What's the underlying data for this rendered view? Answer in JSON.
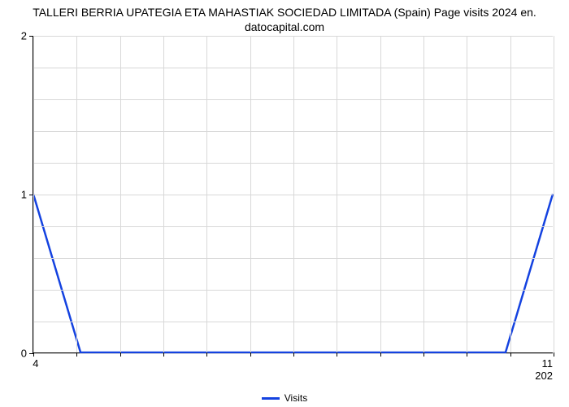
{
  "chart": {
    "type": "line",
    "title_line1": "TALLERI BERRIA UPATEGIA ETA MAHASTIAK SOCIEDAD LIMITADA (Spain) Page visits 2024 en.",
    "title_line2": "datocapital.com",
    "title_fontsize": 14,
    "background_color": "#ffffff",
    "grid_color": "#d8d8d8",
    "axis_color": "#000000",
    "series": {
      "label": "Visits",
      "color": "#1442e0",
      "line_width": 2.5,
      "x": [
        0,
        1,
        2,
        3,
        4,
        5,
        6,
        7,
        8,
        9,
        10,
        11
      ],
      "y": [
        1,
        0,
        0,
        0,
        0,
        0,
        0,
        0,
        0,
        0,
        0,
        1
      ]
    },
    "y_axis": {
      "min": 0,
      "max": 2,
      "ticks": [
        0,
        1,
        2
      ],
      "tick_labels": [
        "0",
        "1",
        "2"
      ],
      "grid_steps": 10
    },
    "x_axis": {
      "left_label": "4",
      "right_label_line1": "11",
      "right_label_line2": "202",
      "minor_tick_count": 12,
      "major_grid_count": 12
    },
    "legend": {
      "position": "bottom-center",
      "items": [
        {
          "label": "Visits",
          "color": "#1442e0"
        }
      ]
    }
  }
}
